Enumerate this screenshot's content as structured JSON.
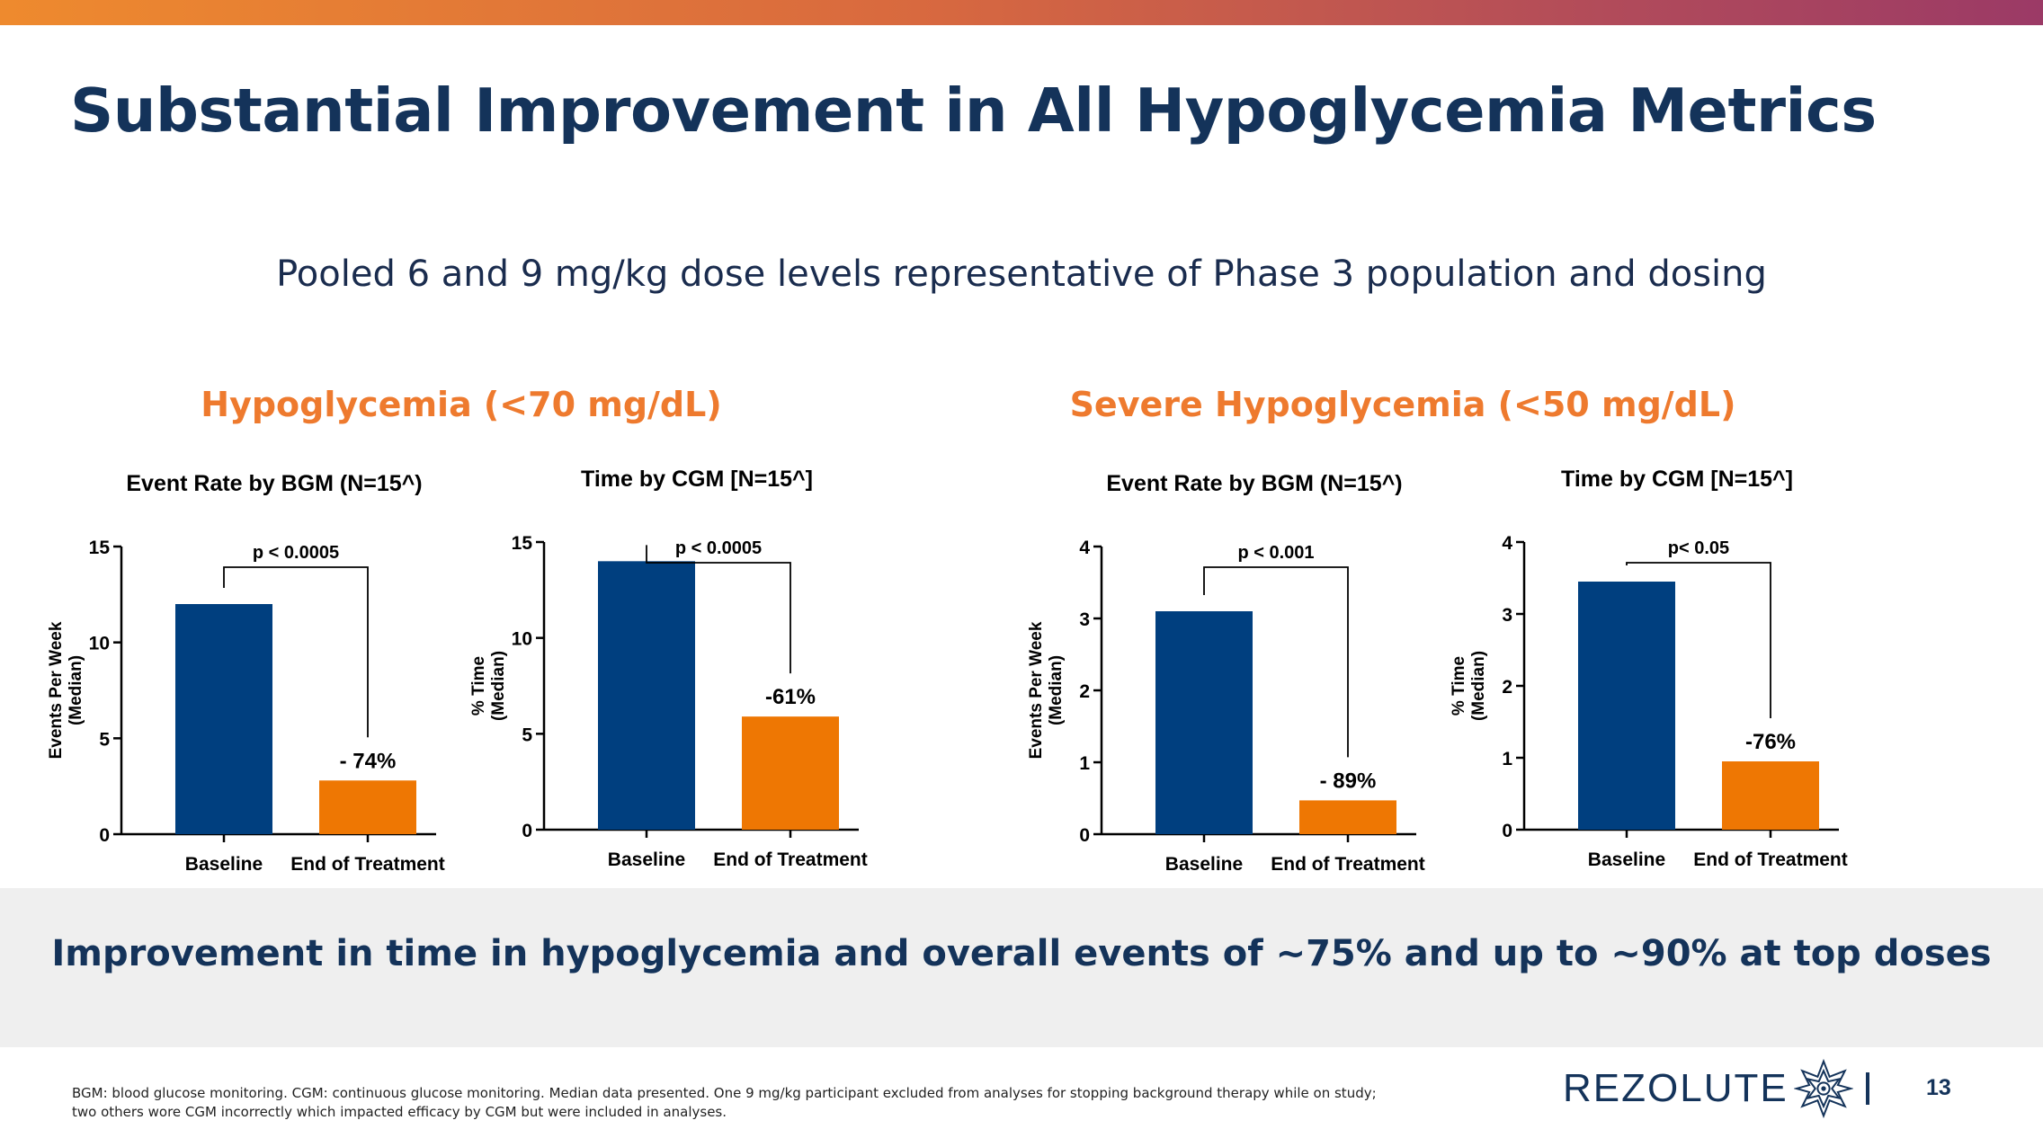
{
  "slide": {
    "title": "Substantial Improvement in All Hypoglycemia Metrics",
    "subtitle": "Pooled 6 and 9 mg/kg dose levels representative of Phase 3 population and dosing",
    "section_left": "Hypoglycemia (<70 mg/dL)",
    "section_right": "Severe Hypoglycemia (<50 mg/dL)",
    "banner": "Improvement in time in hypoglycemia and overall events of ~75% and up to ~90% at top doses",
    "footnote": "BGM: blood glucose monitoring. CGM: continuous glucose monitoring. Median data presented. One 9 mg/kg participant excluded from analyses for stopping background therapy while on study; two others wore CGM incorrectly which impacted efficacy by CGM but were included in analyses.",
    "logo_text": "REZOLUTE",
    "page_number": "13"
  },
  "colors": {
    "baseline": "#003f7f",
    "treatment": "#ee7703",
    "title": "#14335a",
    "section": "#ee7a2e",
    "banner_bg": "#efefef"
  },
  "chart_data": [
    {
      "type": "bar",
      "title": "Event Rate by BGM  (N=15^)",
      "ylabel": [
        "Events Per Week",
        "(Median)"
      ],
      "categories": [
        "Baseline",
        "End of Treatment"
      ],
      "values": [
        12,
        2.8
      ],
      "ylim": [
        0,
        15
      ],
      "yticks": [
        "0",
        "5",
        "10",
        "15"
      ],
      "change_label": "- 74%",
      "p_value": "p < 0.0005",
      "grid": false,
      "legend": "none"
    },
    {
      "type": "bar",
      "title": "Time by CGM  [N=15^]",
      "ylabel": [
        "% Time",
        "(Median)"
      ],
      "categories": [
        "Baseline",
        "End of Treatment"
      ],
      "values": [
        14,
        5.9
      ],
      "ylim": [
        0,
        15
      ],
      "yticks": [
        "0",
        "5",
        "10",
        "15"
      ],
      "change_label": "-61%",
      "p_value": "p < 0.0005",
      "grid": false,
      "legend": "none"
    },
    {
      "type": "bar",
      "title": "Event Rate by BGM  (N=15^)",
      "ylabel": [
        "Events Per Week",
        "(Median)"
      ],
      "categories": [
        "Baseline",
        "End of Treatment"
      ],
      "values": [
        3.1,
        0.47
      ],
      "ylim": [
        0,
        4
      ],
      "yticks": [
        "0",
        "1",
        "2",
        "3",
        "4"
      ],
      "change_label": "- 89%",
      "p_value": "p < 0.001",
      "grid": false,
      "legend": "none"
    },
    {
      "type": "bar",
      "title": "Time by CGM  [N=15^]",
      "ylabel": [
        "% Time",
        "(Median)"
      ],
      "categories": [
        "Baseline",
        "End of Treatment"
      ],
      "values": [
        3.45,
        0.95
      ],
      "ylim": [
        0,
        4
      ],
      "yticks": [
        "0",
        "1",
        "2",
        "3",
        "4"
      ],
      "change_label": "-76%",
      "p_value": "p< 0.05",
      "grid": false,
      "legend": "none"
    }
  ]
}
